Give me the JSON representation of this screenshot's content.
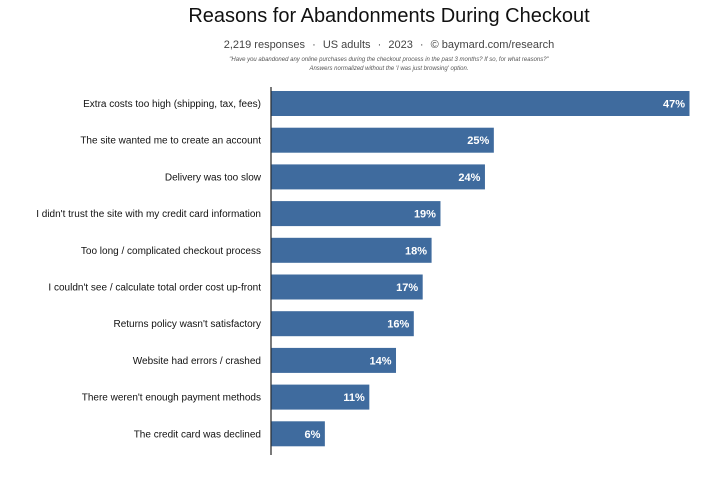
{
  "header": {
    "title": "Reasons for Abandonments During Checkout",
    "meta": [
      "2,219 responses",
      "US adults",
      "2023",
      "©  baymard.com/research"
    ],
    "separator": "·",
    "note_line1": "\"Have you abandoned any online purchases during the checkout process in the past 3 months? If so, for what reasons?\"",
    "note_line2": "Answers normalized without the 'I was just browsing' option."
  },
  "chart_data": {
    "type": "bar",
    "orientation": "horizontal",
    "title": "Reasons for Abandonments During Checkout",
    "categories": [
      "Extra costs too high (shipping, tax, fees)",
      "The site wanted me to create an account",
      "Delivery was too slow",
      "I didn't trust the site with my credit card information",
      "Too long / complicated checkout process",
      "I couldn't see / calculate total order cost up-front",
      "Returns policy wasn't satisfactory",
      "Website had errors / crashed",
      "There weren't enough payment methods",
      "The credit card was declined"
    ],
    "values": [
      47,
      25,
      24,
      19,
      18,
      17,
      16,
      14,
      11,
      6
    ],
    "value_labels": [
      "47%",
      "25%",
      "24%",
      "19%",
      "18%",
      "17%",
      "16%",
      "14%",
      "11%",
      "6%"
    ],
    "bar_color": "#3f6b9e",
    "xlim": [
      0,
      47
    ],
    "grid": false
  }
}
